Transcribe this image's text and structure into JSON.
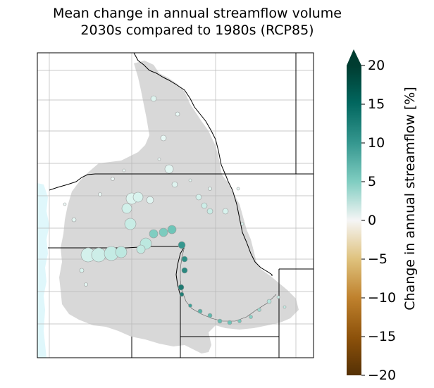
{
  "title_line1": "Mean change in annual streamflow volume",
  "title_line2": "2030s compared to 1980s (RCP85)",
  "colorbar": {
    "label": "Change in annual streamflow [%]",
    "min": -20,
    "max": 20,
    "extend": "max",
    "ticks": [
      "20",
      "15",
      "10",
      "5",
      "0",
      "−5",
      "−10",
      "−15",
      "−20"
    ],
    "colors": {
      "low": "#543005",
      "mid": "#f5f5f5",
      "high": "#003c30"
    }
  },
  "map": {
    "basin_color": "#d8d8d8",
    "ocean_color": "#dff7fb",
    "border_color": "#000000",
    "grid_color": "#b8b8b8"
  }
}
